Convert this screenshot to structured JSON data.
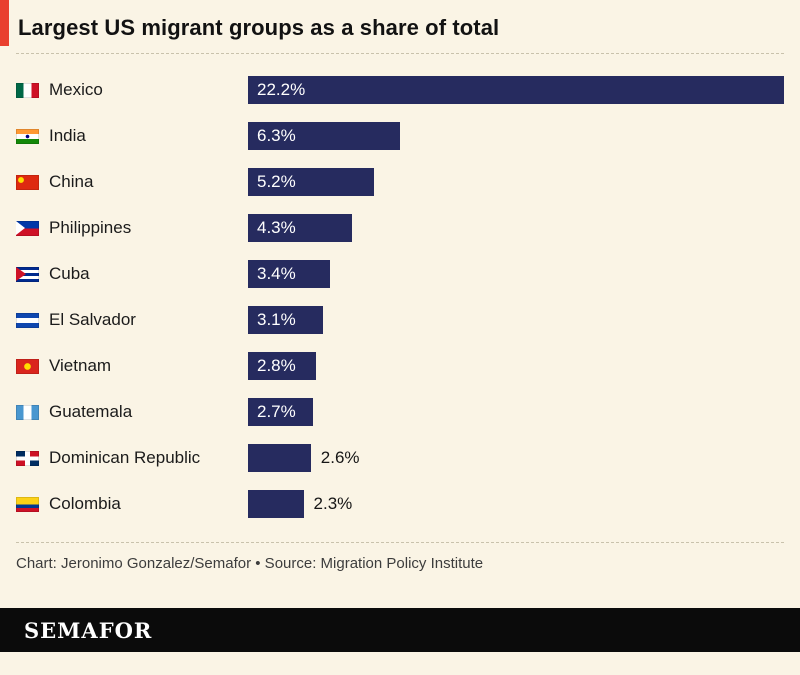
{
  "header": {
    "title": "Largest US migrant groups as a share of total",
    "accent_color": "#E9402F"
  },
  "chart_data": {
    "type": "bar",
    "orientation": "horizontal",
    "title": "Largest US migrant groups as a share of total",
    "unit": "%",
    "bar_color": "#262B5F",
    "xmax": 22.2,
    "categories": [
      "Mexico",
      "India",
      "China",
      "Philippines",
      "Cuba",
      "El Salvador",
      "Vietnam",
      "Guatemala",
      "Dominican Republic",
      "Colombia"
    ],
    "values": [
      22.2,
      6.3,
      5.2,
      4.3,
      3.4,
      3.1,
      2.8,
      2.7,
      2.6,
      2.3
    ],
    "rows": [
      {
        "country": "Mexico",
        "flag": "mexico",
        "value": 22.2,
        "label": "22.2%",
        "label_inside": true
      },
      {
        "country": "India",
        "flag": "india",
        "value": 6.3,
        "label": "6.3%",
        "label_inside": true
      },
      {
        "country": "China",
        "flag": "china",
        "value": 5.2,
        "label": "5.2%",
        "label_inside": true
      },
      {
        "country": "Philippines",
        "flag": "philippines",
        "value": 4.3,
        "label": "4.3%",
        "label_inside": true
      },
      {
        "country": "Cuba",
        "flag": "cuba",
        "value": 3.4,
        "label": "3.4%",
        "label_inside": true
      },
      {
        "country": "El Salvador",
        "flag": "el-salvador",
        "value": 3.1,
        "label": "3.1%",
        "label_inside": true
      },
      {
        "country": "Vietnam",
        "flag": "vietnam",
        "value": 2.8,
        "label": "2.8%",
        "label_inside": true
      },
      {
        "country": "Guatemala",
        "flag": "guatemala",
        "value": 2.7,
        "label": "2.7%",
        "label_inside": true
      },
      {
        "country": "Dominican Republic",
        "flag": "dominican-republic",
        "value": 2.6,
        "label": "2.6%",
        "label_inside": false
      },
      {
        "country": "Colombia",
        "flag": "colombia",
        "value": 2.3,
        "label": "2.3%",
        "label_inside": false
      }
    ]
  },
  "footer": {
    "credit": "Chart: Jeronimo Gonzalez/Semafor • Source: Migration Policy Institute",
    "logo": "SEMAFOR"
  }
}
